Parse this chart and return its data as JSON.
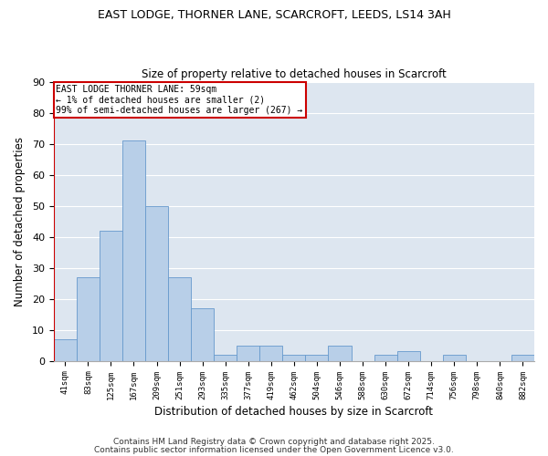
{
  "title1": "EAST LODGE, THORNER LANE, SCARCROFT, LEEDS, LS14 3AH",
  "title2": "Size of property relative to detached houses in Scarcroft",
  "xlabel": "Distribution of detached houses by size in Scarcroft",
  "ylabel": "Number of detached properties",
  "categories": [
    "41sqm",
    "83sqm",
    "125sqm",
    "167sqm",
    "209sqm",
    "251sqm",
    "293sqm",
    "335sqm",
    "377sqm",
    "419sqm",
    "462sqm",
    "504sqm",
    "546sqm",
    "588sqm",
    "630sqm",
    "672sqm",
    "714sqm",
    "756sqm",
    "798sqm",
    "840sqm",
    "882sqm"
  ],
  "values": [
    7,
    27,
    42,
    71,
    50,
    27,
    17,
    2,
    5,
    5,
    2,
    2,
    5,
    0,
    2,
    3,
    0,
    2,
    0,
    0,
    2
  ],
  "bar_color": "#b8cfe8",
  "bar_edge_color": "#6699cc",
  "bg_color": "#dde6f0",
  "grid_color": "#ffffff",
  "annotation_box_color": "#cc0000",
  "annotation_text_line1": "EAST LODGE THORNER LANE: 59sqm",
  "annotation_text_line2": "← 1% of detached houses are smaller (2)",
  "annotation_text_line3": "99% of semi-detached houses are larger (267) →",
  "ylim": [
    0,
    90
  ],
  "yticks": [
    0,
    10,
    20,
    30,
    40,
    50,
    60,
    70,
    80,
    90
  ],
  "footer1": "Contains HM Land Registry data © Crown copyright and database right 2025.",
  "footer2": "Contains public sector information licensed under the Open Government Licence v3.0."
}
